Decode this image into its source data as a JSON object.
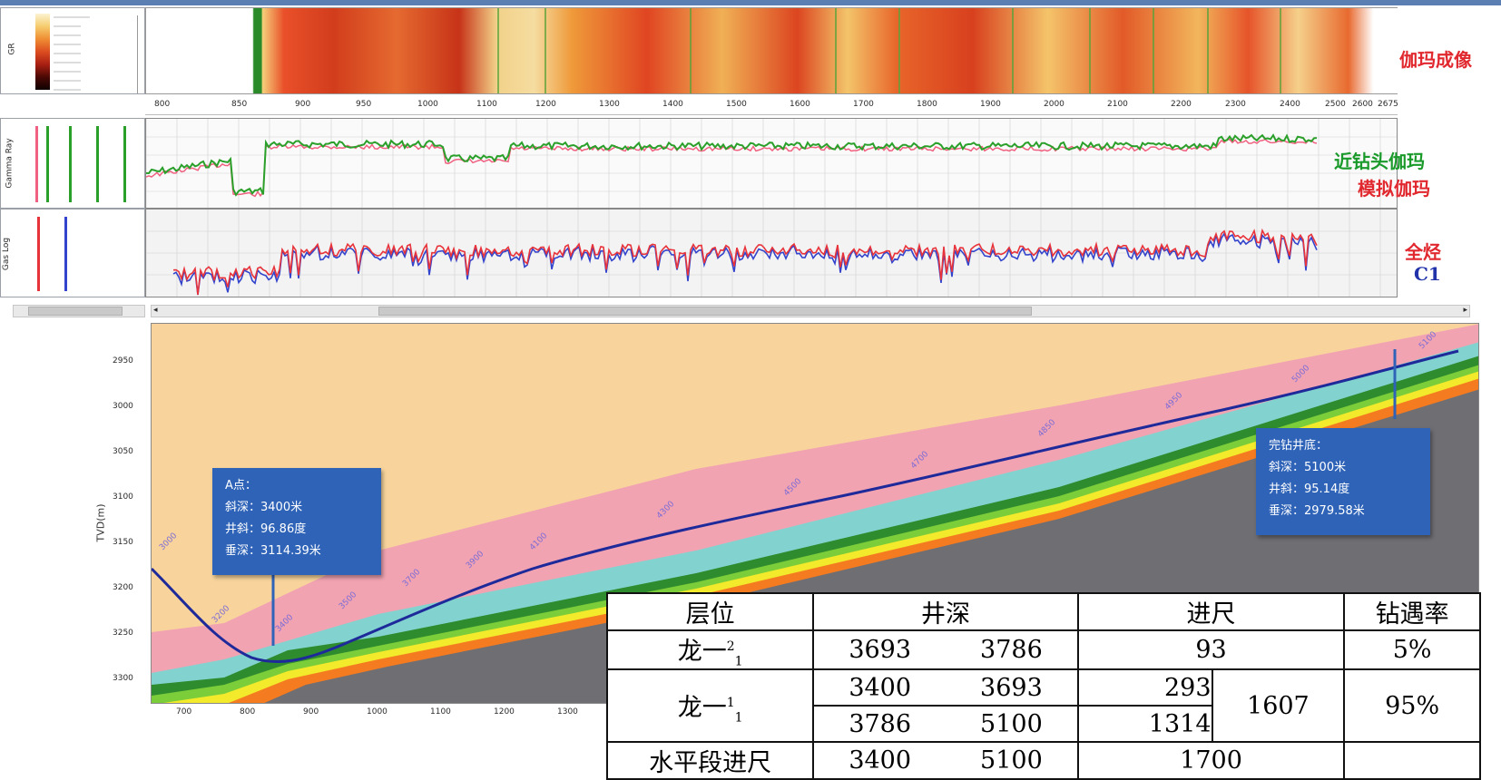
{
  "gamma_image": {
    "label": "伽玛成像",
    "colors": [
      "#f7e7b6",
      "#f5c66a",
      "#ef9a3a",
      "#e8662a",
      "#d93a1c",
      "#a51d12",
      "#5c0d08",
      "#220302"
    ]
  },
  "depth_axis": {
    "ticks": [
      "800",
      "850",
      "900",
      "950",
      "1000",
      "1100",
      "1200",
      "1300",
      "1400",
      "1500",
      "1600",
      "1700",
      "1800",
      "1900",
      "2000",
      "2100",
      "2200",
      "2300",
      "2400",
      "2500",
      "2600",
      "2675"
    ]
  },
  "gamma_track": {
    "label_near_bit": "近钻头伽玛",
    "label_simulated": "模拟伽玛",
    "left_header": "Gamma Ray",
    "colors": {
      "near_bit": "#2aa02a",
      "simulated": "#f06080"
    }
  },
  "gas_track": {
    "label_total": "全烃",
    "label_c1": "C1",
    "left_header": "Gas Log",
    "colors": {
      "total": "#e8333a",
      "c1": "#3344cc"
    }
  },
  "section": {
    "y_axis_label": "TVD(m)",
    "y_ticks": [
      "2950",
      "3000",
      "3050",
      "3100",
      "3150",
      "3200",
      "3250",
      "3300"
    ],
    "x_ticks": [
      "700",
      "800",
      "900",
      "1000",
      "1100",
      "1200",
      "1300"
    ],
    "colors": {
      "upper": "#f8d49c",
      "pink": "#f1a3b2",
      "cyan": "#82d3cf",
      "green_dark": "#2e8b2e",
      "green_light": "#7ccd3a",
      "yellow": "#f2ea2a",
      "orange": "#f47b20",
      "gray": "#6e6e73",
      "well": "#1e2a9a"
    }
  },
  "callout_a": {
    "line1": "A点：",
    "line2": "斜深：3400米",
    "line3": "井斜：96.86度",
    "line4": "垂深：3114.39米"
  },
  "callout_end": {
    "line1": "完钻井底：",
    "line2": "斜深：5100米",
    "line3": "井斜：95.14度",
    "line4": "垂深：2979.58米"
  },
  "table": {
    "headers": [
      "层位",
      "井深",
      "进尺",
      "钻遇率"
    ],
    "row1": {
      "layer": "龙一",
      "sup": "2",
      "sub": "1",
      "d1": "3693",
      "d2": "3786",
      "footage": "93",
      "rate": "5%"
    },
    "row2": {
      "layer": "龙一",
      "sup": "1",
      "sub": "1",
      "d1a": "3400",
      "d2a": "3693",
      "fa": "293",
      "d1b": "3786",
      "d2b": "5100",
      "fb": "1314",
      "total": "1607",
      "rate": "95%"
    },
    "row3": {
      "layer": "水平段进尺",
      "d1": "3400",
      "d2": "5100",
      "footage": "1700",
      "rate": ""
    }
  }
}
